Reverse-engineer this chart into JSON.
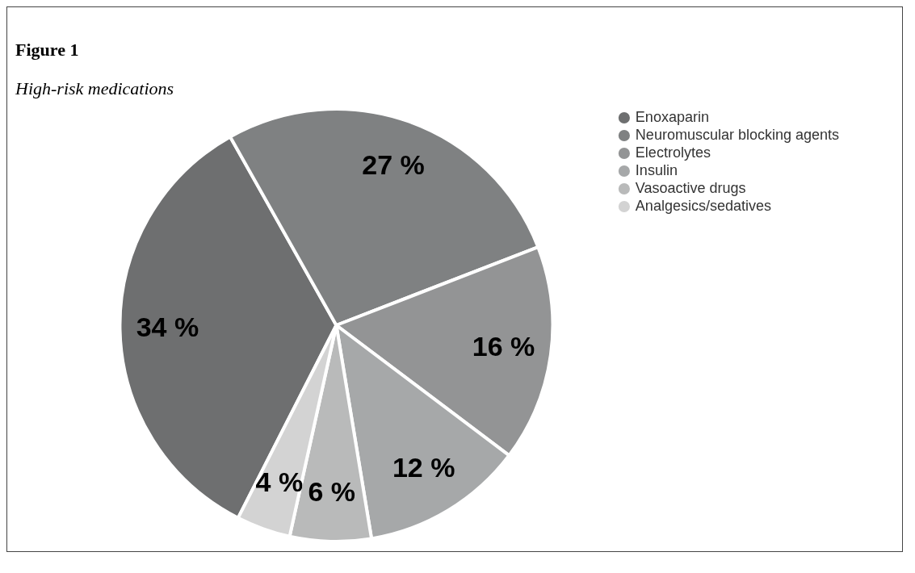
{
  "chart_data": {
    "type": "pie",
    "title": "Figure 1",
    "subtitle": "High-risk medications",
    "categories": [
      "Enoxaparin",
      "Neuromuscular blocking agents",
      "Electrolytes",
      "Insulin",
      "Vasoactive drugs",
      "Analgesics/sedatives"
    ],
    "values": [
      34,
      27,
      16,
      12,
      6,
      4
    ],
    "colors": [
      "#6e6f70",
      "#7f8182",
      "#939495",
      "#a6a8a9",
      "#b9baba",
      "#d3d3d3"
    ],
    "value_labels": [
      "34 %",
      "27 %",
      "16 %",
      "12 %",
      "6 %",
      "4 %"
    ],
    "legend": "top right"
  }
}
